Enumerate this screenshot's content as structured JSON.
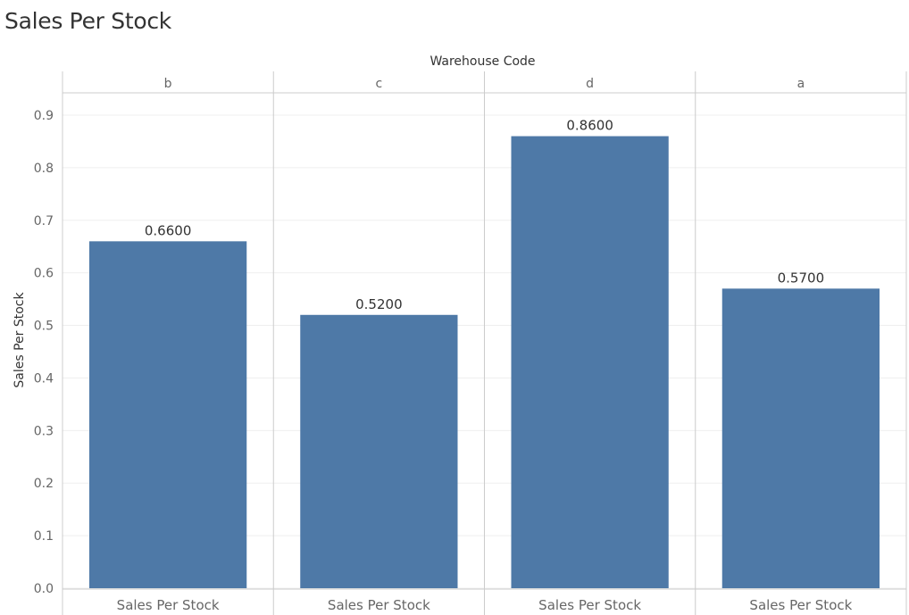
{
  "page": {
    "title": "Sales Per Stock"
  },
  "colors": {
    "bar": "#4e79a7",
    "axis_text": "#666666",
    "label_text": "#333333",
    "rule": "#cccccc",
    "grid": "#efefef"
  },
  "chart_data": {
    "type": "bar",
    "title": "Sales Per Stock",
    "column_header": "Warehouse Code",
    "categories": [
      "b",
      "c",
      "d",
      "a"
    ],
    "values": [
      0.66,
      0.52,
      0.86,
      0.57
    ],
    "data_labels": [
      "0.6600",
      "0.5200",
      "0.8600",
      "0.5700"
    ],
    "measure_label": "Sales Per Stock",
    "ylabel": "Sales Per Stock",
    "ylim": [
      0,
      0.9
    ],
    "yticks": [
      0.0,
      0.1,
      0.2,
      0.3,
      0.4,
      0.5,
      0.6,
      0.7,
      0.8,
      0.9
    ],
    "ytick_labels": [
      "0.0",
      "0.1",
      "0.2",
      "0.3",
      "0.4",
      "0.5",
      "0.6",
      "0.7",
      "0.8",
      "0.9"
    ],
    "grid": true,
    "legend": "none"
  }
}
